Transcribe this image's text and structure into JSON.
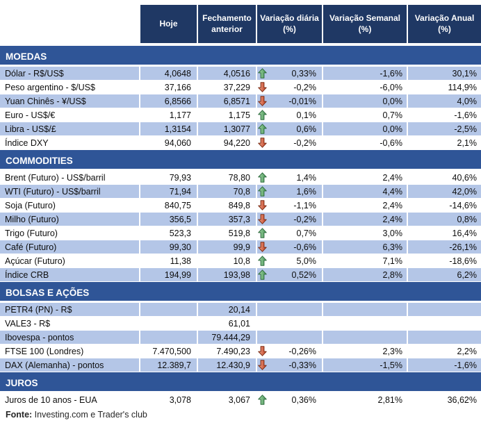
{
  "header": {
    "columns": [
      "Hoje",
      "Fechamento anterior",
      "Variação diária (%)",
      "Variação Semanal (%)",
      "Variação Anual (%)"
    ]
  },
  "colors": {
    "header_bg": "#1F3864",
    "section_bg": "#2F5597",
    "shaded_row_bg": "#B4C6E7",
    "up_arrow": "#449454",
    "down_arrow": "#BF3A1E"
  },
  "sections": [
    {
      "title": "MOEDAS",
      "rows": [
        {
          "label": "Dólar - R$/US$",
          "hoje": "4,0648",
          "fechamento": "4,0516",
          "arrow": "up",
          "diaria": "0,33%",
          "semanal": "-1,6%",
          "anual": "30,1%",
          "shaded": true
        },
        {
          "label": "Peso argentino - $/US$",
          "hoje": "37,166",
          "fechamento": "37,229",
          "arrow": "down",
          "diaria": "-0,2%",
          "semanal": "-6,0%",
          "anual": "114,9%",
          "shaded": false
        },
        {
          "label": "Yuan Chinês - ¥/US$",
          "hoje": "6,8566",
          "fechamento": "6,8571",
          "arrow": "down",
          "diaria": "-0,01%",
          "semanal": "0,0%",
          "anual": "4,0%",
          "shaded": true
        },
        {
          "label": "Euro - US$/€",
          "hoje": "1,177",
          "fechamento": "1,175",
          "arrow": "up",
          "diaria": "0,1%",
          "semanal": "0,7%",
          "anual": "-1,6%",
          "shaded": false
        },
        {
          "label": "Libra - US$/£",
          "hoje": "1,3154",
          "fechamento": "1,3077",
          "arrow": "up",
          "diaria": "0,6%",
          "semanal": "0,0%",
          "anual": "-2,5%",
          "shaded": true
        },
        {
          "label": "Índice DXY",
          "hoje": "94,060",
          "fechamento": "94,220",
          "arrow": "down",
          "diaria": "-0,2%",
          "semanal": "-0,6%",
          "anual": "2,1%",
          "shaded": false
        }
      ]
    },
    {
      "title": "COMMODITIES",
      "rows": [
        {
          "label": "Brent (Futuro) - US$/barril",
          "hoje": "79,93",
          "fechamento": "78,80",
          "arrow": "up",
          "diaria": "1,4%",
          "semanal": "2,4%",
          "anual": "40,6%",
          "shaded": false
        },
        {
          "label": "WTI (Futuro) - US$/barril",
          "hoje": "71,94",
          "fechamento": "70,8",
          "arrow": "up",
          "diaria": "1,6%",
          "semanal": "4,4%",
          "anual": "42,0%",
          "shaded": true
        },
        {
          "label": "Soja (Futuro)",
          "hoje": "840,75",
          "fechamento": "849,8",
          "arrow": "down",
          "diaria": "-1,1%",
          "semanal": "2,4%",
          "anual": "-14,6%",
          "shaded": false
        },
        {
          "label": "Milho (Futuro)",
          "hoje": "356,5",
          "fechamento": "357,3",
          "arrow": "down",
          "diaria": "-0,2%",
          "semanal": "2,4%",
          "anual": "0,8%",
          "shaded": true
        },
        {
          "label": "Trigo (Futuro)",
          "hoje": "523,3",
          "fechamento": "519,8",
          "arrow": "up",
          "diaria": "0,7%",
          "semanal": "3,0%",
          "anual": "16,4%",
          "shaded": false
        },
        {
          "label": "Café (Futuro)",
          "hoje": "99,30",
          "fechamento": "99,9",
          "arrow": "down",
          "diaria": "-0,6%",
          "semanal": "6,3%",
          "anual": "-26,1%",
          "shaded": true
        },
        {
          "label": "Açúcar (Futuro)",
          "hoje": "11,38",
          "fechamento": "10,8",
          "arrow": "up",
          "diaria": "5,0%",
          "semanal": "7,1%",
          "anual": "-18,6%",
          "shaded": false
        },
        {
          "label": "Índice CRB",
          "hoje": "194,99",
          "fechamento": "193,98",
          "arrow": "up",
          "diaria": "0,52%",
          "semanal": "2,8%",
          "anual": "6,2%",
          "shaded": true
        }
      ]
    },
    {
      "title": "BOLSAS E AÇÕES",
      "rows": [
        {
          "label": "PETR4 (PN) - R$",
          "hoje": "",
          "fechamento": "20,14",
          "arrow": null,
          "diaria": "",
          "semanal": "",
          "anual": "",
          "shaded": true
        },
        {
          "label": "VALE3 - R$",
          "hoje": "",
          "fechamento": "61,01",
          "arrow": null,
          "diaria": "",
          "semanal": "",
          "anual": "",
          "shaded": false
        },
        {
          "label": "Ibovespa - pontos",
          "hoje": "",
          "fechamento": "79.444,29",
          "arrow": null,
          "diaria": "",
          "semanal": "",
          "anual": "",
          "shaded": true
        },
        {
          "label": "FTSE 100 (Londres)",
          "hoje": "7.470,500",
          "fechamento": "7.490,23",
          "arrow": "down",
          "diaria": "-0,26%",
          "semanal": "2,3%",
          "anual": "2,2%",
          "shaded": false
        },
        {
          "label": "DAX (Alemanha) - pontos",
          "hoje": "12.389,7",
          "fechamento": "12.430,9",
          "arrow": "down",
          "diaria": "-0,33%",
          "semanal": "-1,5%",
          "anual": "-1,6%",
          "shaded": true
        }
      ]
    },
    {
      "title": "JUROS",
      "rows": [
        {
          "label": "Juros de 10 anos - EUA",
          "hoje": "3,078",
          "fechamento": "3,067",
          "arrow": "up",
          "diaria": "0,36%",
          "semanal": "2,81%",
          "anual": "36,62%",
          "shaded": false
        }
      ]
    }
  ],
  "footer": {
    "source_label": "Fonte:",
    "source_text": " Investing.com e Trader's club"
  }
}
